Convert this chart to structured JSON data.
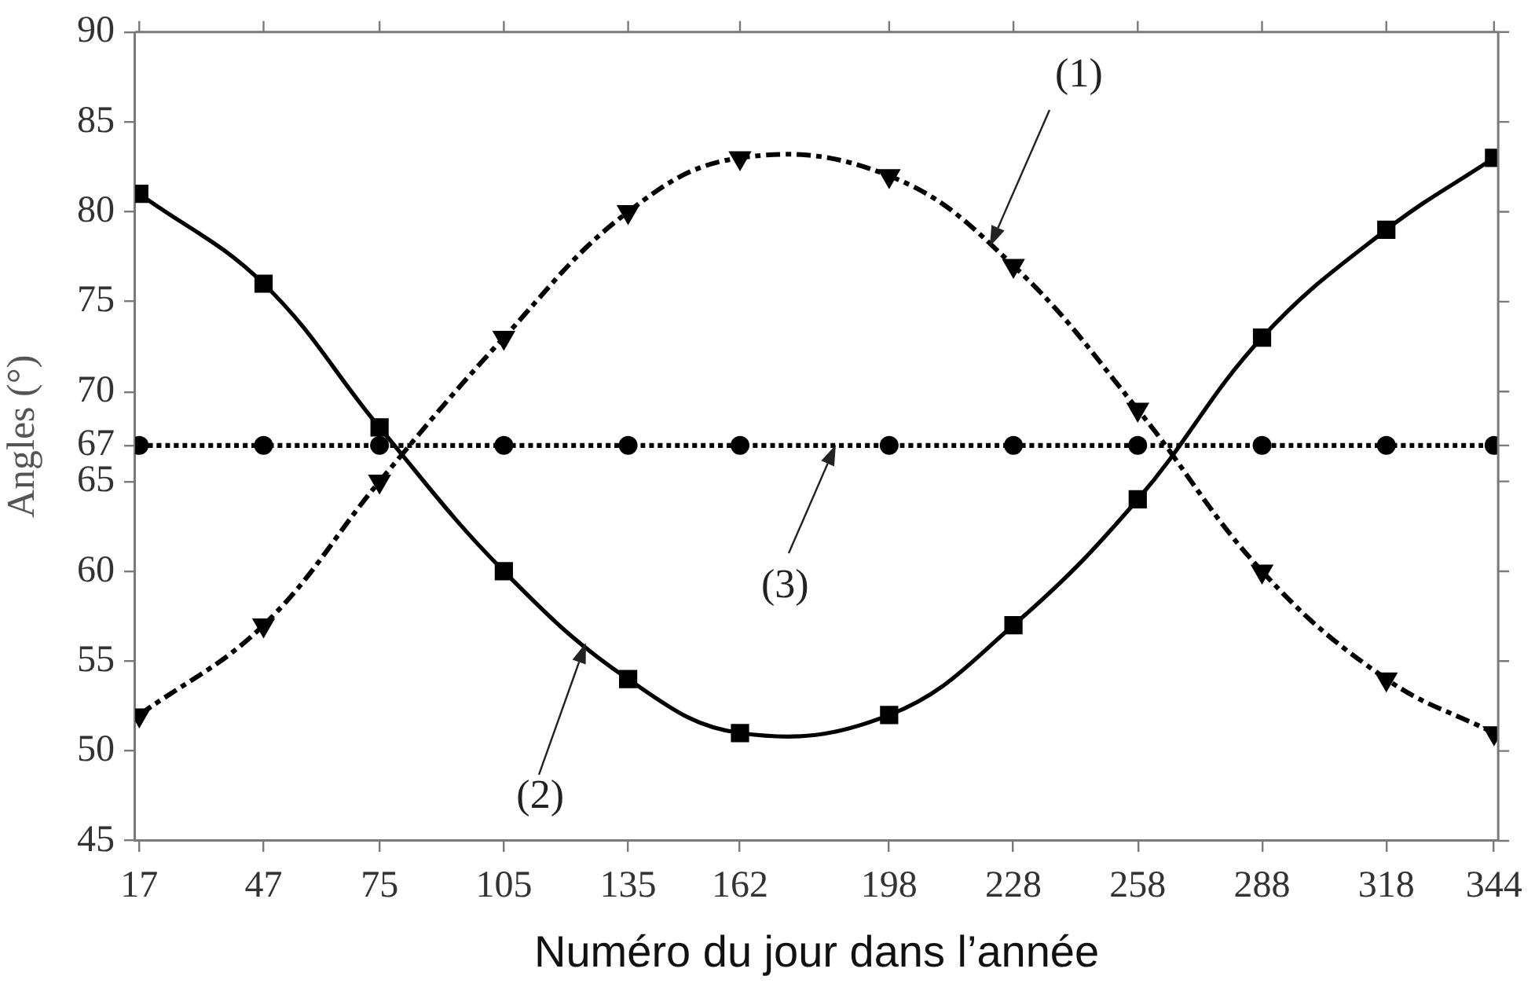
{
  "chart_data": {
    "type": "line",
    "xlabel": "Numéro du jour dans l’année",
    "ylabel": "Angles (°)",
    "x": [
      17,
      47,
      75,
      105,
      135,
      162,
      198,
      228,
      258,
      288,
      318,
      344
    ],
    "series": [
      {
        "color": "#000000",
        "values": [
          52,
          57,
          65,
          73,
          80,
          83,
          82,
          77,
          69,
          60,
          54,
          51
        ],
        "marker": "triangle",
        "line_style": "dashed"
      },
      {
        "color": "#000000",
        "values": [
          81,
          76,
          68,
          60,
          54,
          51,
          52,
          57,
          64,
          73,
          79,
          83
        ],
        "marker": "square",
        "line_style": "solid"
      },
      {
        "color": "#000000",
        "values": [
          67,
          67,
          67,
          67,
          67,
          67,
          67,
          67,
          67,
          67,
          67,
          67
        ],
        "marker": "circle",
        "line_style": "dotted"
      }
    ],
    "xlim": [
      16,
      345
    ],
    "xticks": [
      17,
      47,
      75,
      105,
      135,
      162,
      198,
      228,
      258,
      288,
      318,
      344
    ],
    "ylim": [
      45,
      90
    ],
    "yticks": [
      45,
      50,
      55,
      60,
      65,
      67,
      70,
      75,
      80,
      85,
      90
    ],
    "grid": false,
    "legend": false,
    "annotations": [
      "(1)",
      "(2)",
      {
        "text": "(3)",
        "x": 185,
        "y": 67
      }
    ]
  }
}
